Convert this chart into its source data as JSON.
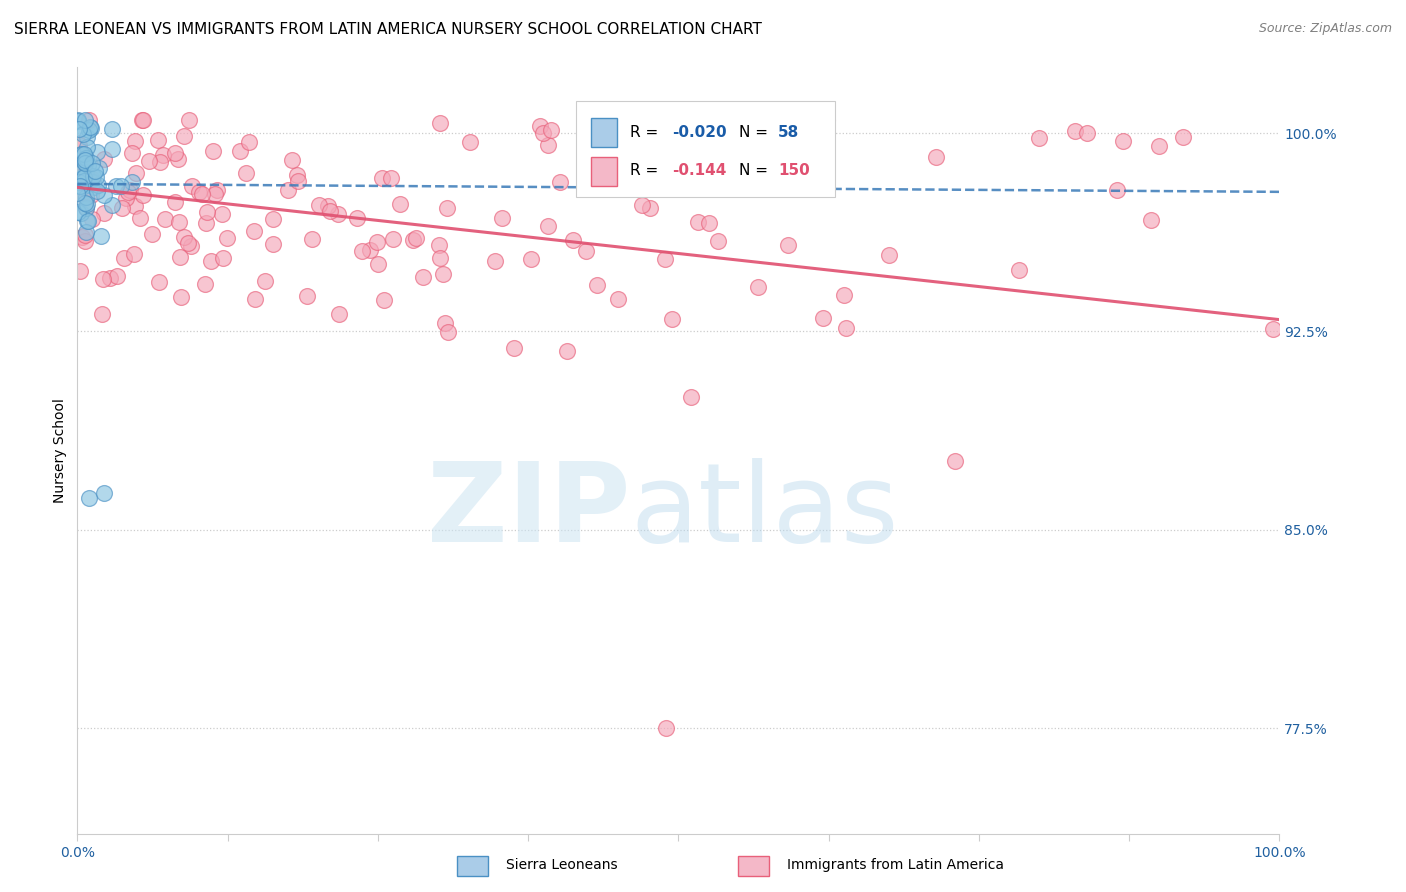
{
  "title": "SIERRA LEONEAN VS IMMIGRANTS FROM LATIN AMERICA NURSERY SCHOOL CORRELATION CHART",
  "source": "Source: ZipAtlas.com",
  "ylabel": "Nursery School",
  "ytick_labels": [
    "100.0%",
    "92.5%",
    "85.0%",
    "77.5%"
  ],
  "ytick_values": [
    1.0,
    0.925,
    0.85,
    0.775
  ],
  "legend_label_blue": "Sierra Leoneans",
  "legend_label_pink": "Immigrants from Latin America",
  "blue_color": "#89c4e1",
  "pink_color": "#f4a7b9",
  "blue_edge_color": "#4a90c4",
  "pink_edge_color": "#e8607a",
  "blue_line_color": "#3a7ab8",
  "pink_line_color": "#e05070",
  "blue_r": -0.02,
  "blue_n": 58,
  "pink_r": -0.144,
  "pink_n": 150,
  "xmin": 0.0,
  "xmax": 1.0,
  "ymin": 0.735,
  "ymax": 1.025,
  "title_fontsize": 11,
  "source_fontsize": 9,
  "legend_r_blue_color": "#1a5ca8",
  "legend_r_pink_color": "#e05070",
  "legend_n_blue_color": "#1a5ca8",
  "legend_n_pink_color": "#e05070"
}
